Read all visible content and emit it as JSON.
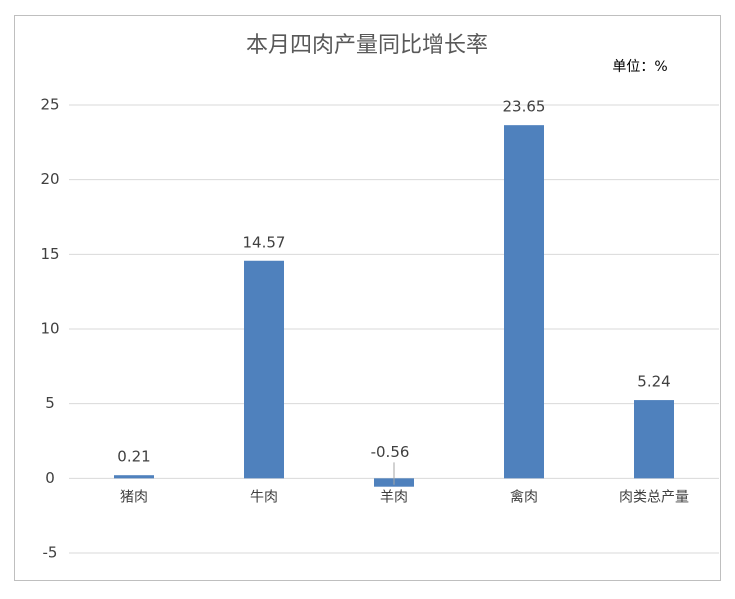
{
  "chart_data": {
    "type": "bar",
    "title": "本月四肉产量同比增长率",
    "unit": "单位：%",
    "categories": [
      "猪肉",
      "牛肉",
      "羊肉",
      "禽肉",
      "肉类总产量"
    ],
    "values": [
      0.21,
      14.57,
      -0.56,
      23.65,
      5.24
    ],
    "color": "#4f81bd",
    "ylim": [
      -5,
      25
    ],
    "yticks": [
      -5,
      0,
      5,
      10,
      15,
      20,
      25
    ],
    "grid": true,
    "data_labels": true
  }
}
